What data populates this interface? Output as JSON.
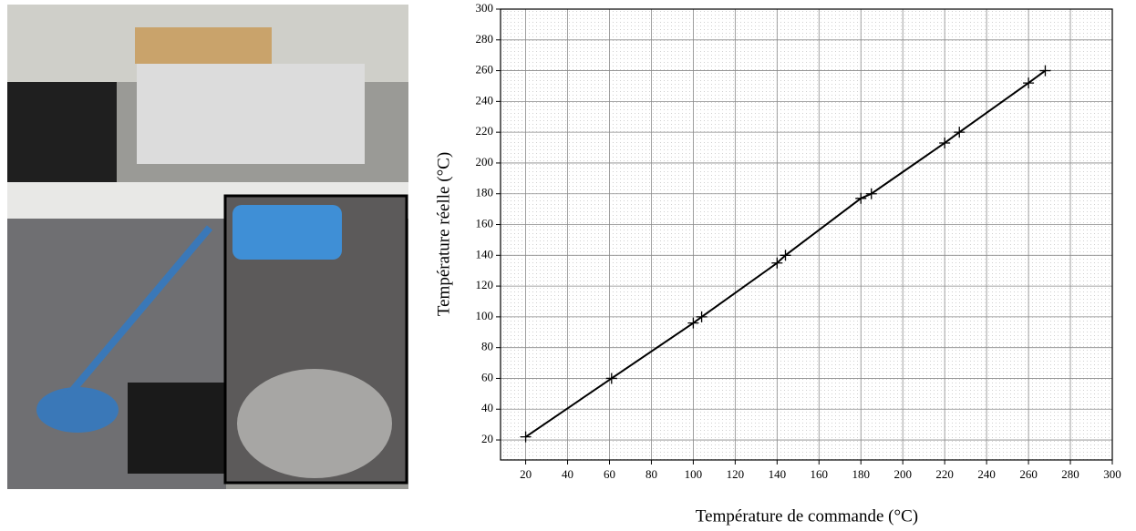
{
  "chart_data": {
    "type": "line",
    "x_label": "Température de commande (°C)",
    "y_label": "Température réelle (°C)",
    "x": [
      20,
      61,
      100,
      104,
      140,
      144,
      180,
      185,
      220,
      227,
      260,
      268
    ],
    "series": [
      {
        "color": "#000000",
        "values": [
          22,
          60,
          96,
          100,
          135,
          140,
          177,
          180,
          213,
          220,
          252,
          260
        ]
      }
    ],
    "xlim": [
      8,
      300
    ],
    "ylim": [
      7,
      300
    ],
    "xticks": [
      20,
      40,
      60,
      80,
      100,
      120,
      140,
      160,
      180,
      200,
      220,
      240,
      260,
      280,
      300
    ],
    "yticks": [
      20,
      40,
      60,
      80,
      100,
      120,
      140,
      160,
      180,
      200,
      220,
      240,
      260,
      280,
      300
    ],
    "grid": true
  }
}
